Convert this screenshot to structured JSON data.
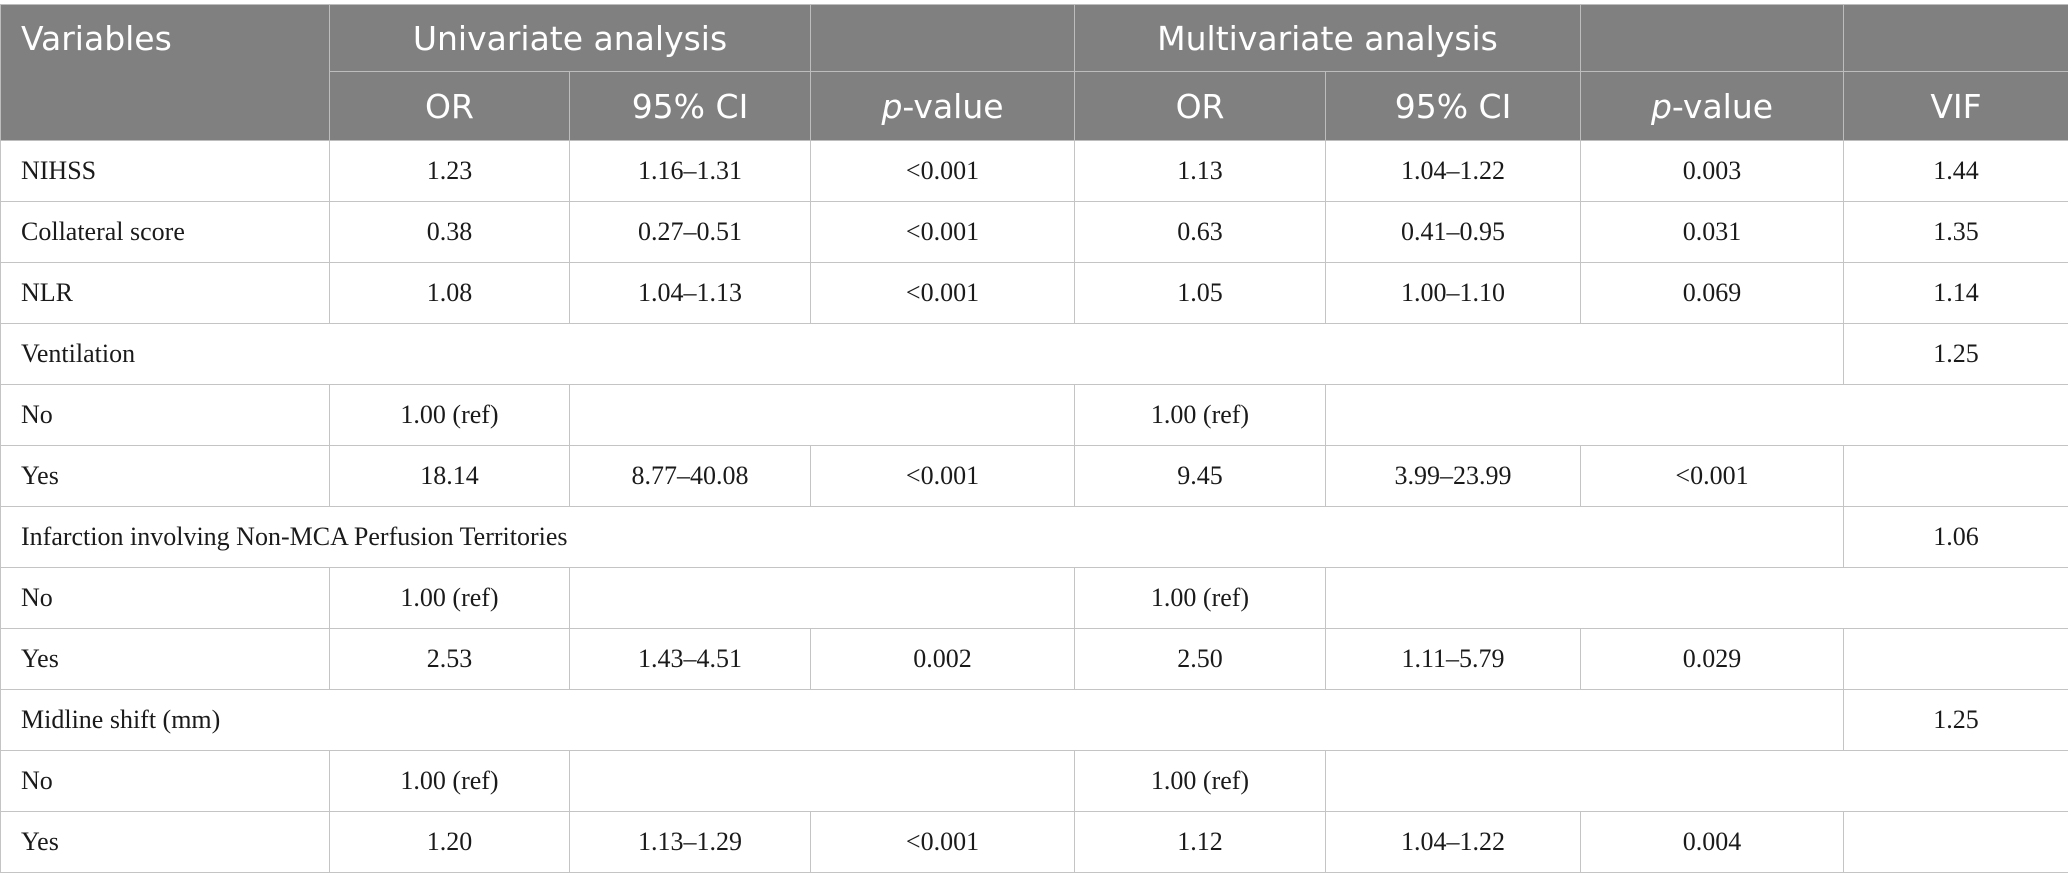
{
  "header": {
    "variables": "Variables",
    "univariate": "Univariate analysis",
    "multivariate": "Multivariate analysis",
    "or": "OR",
    "ci": "95% CI",
    "p_italic": "p",
    "p_rest": "-value",
    "vif": "VIF"
  },
  "rows": [
    {
      "type": "data",
      "label": "NIHSS",
      "u_or": "1.23",
      "u_ci": "1.16–1.31",
      "u_p": "<0.001",
      "m_or": "1.13",
      "m_ci": "1.04–1.22",
      "m_p": "0.003",
      "vif": "1.44"
    },
    {
      "type": "data",
      "label": "Collateral score",
      "u_or": "0.38",
      "u_ci": "0.27–0.51",
      "u_p": "<0.001",
      "m_or": "0.63",
      "m_ci": "0.41–0.95",
      "m_p": "0.031",
      "vif": "1.35"
    },
    {
      "type": "data",
      "label": "NLR",
      "u_or": "1.08",
      "u_ci": "1.04–1.13",
      "u_p": "<0.001",
      "m_or": "1.05",
      "m_ci": "1.00–1.10",
      "m_p": "0.069",
      "vif": "1.14"
    },
    {
      "type": "group",
      "label": "Ventilation",
      "vif": "1.25"
    },
    {
      "type": "ref",
      "label": "No",
      "u_or": "1.00 (ref)",
      "m_or": "1.00 (ref)"
    },
    {
      "type": "data",
      "label": "Yes",
      "u_or": "18.14",
      "u_ci": "8.77–40.08",
      "u_p": "<0.001",
      "m_or": "9.45",
      "m_ci": "3.99–23.99",
      "m_p": "<0.001",
      "vif": ""
    },
    {
      "type": "group",
      "label": "Infarction involving Non-MCA Perfusion Territories",
      "vif": "1.06"
    },
    {
      "type": "ref",
      "label": "No",
      "u_or": "1.00 (ref)",
      "m_or": "1.00 (ref)"
    },
    {
      "type": "data",
      "label": "Yes",
      "u_or": "2.53",
      "u_ci": "1.43–4.51",
      "u_p": "0.002",
      "m_or": "2.50",
      "m_ci": "1.11–5.79",
      "m_p": "0.029",
      "vif": ""
    },
    {
      "type": "group",
      "label": "Midline shift (mm)",
      "vif": "1.25"
    },
    {
      "type": "ref",
      "label": "No",
      "u_or": "1.00 (ref)",
      "m_or": "1.00 (ref)"
    },
    {
      "type": "data",
      "label": "Yes",
      "u_or": "1.20",
      "u_ci": "1.13–1.29",
      "u_p": "<0.001",
      "m_or": "1.12",
      "m_ci": "1.04–1.22",
      "m_p": "0.004",
      "vif": ""
    }
  ]
}
